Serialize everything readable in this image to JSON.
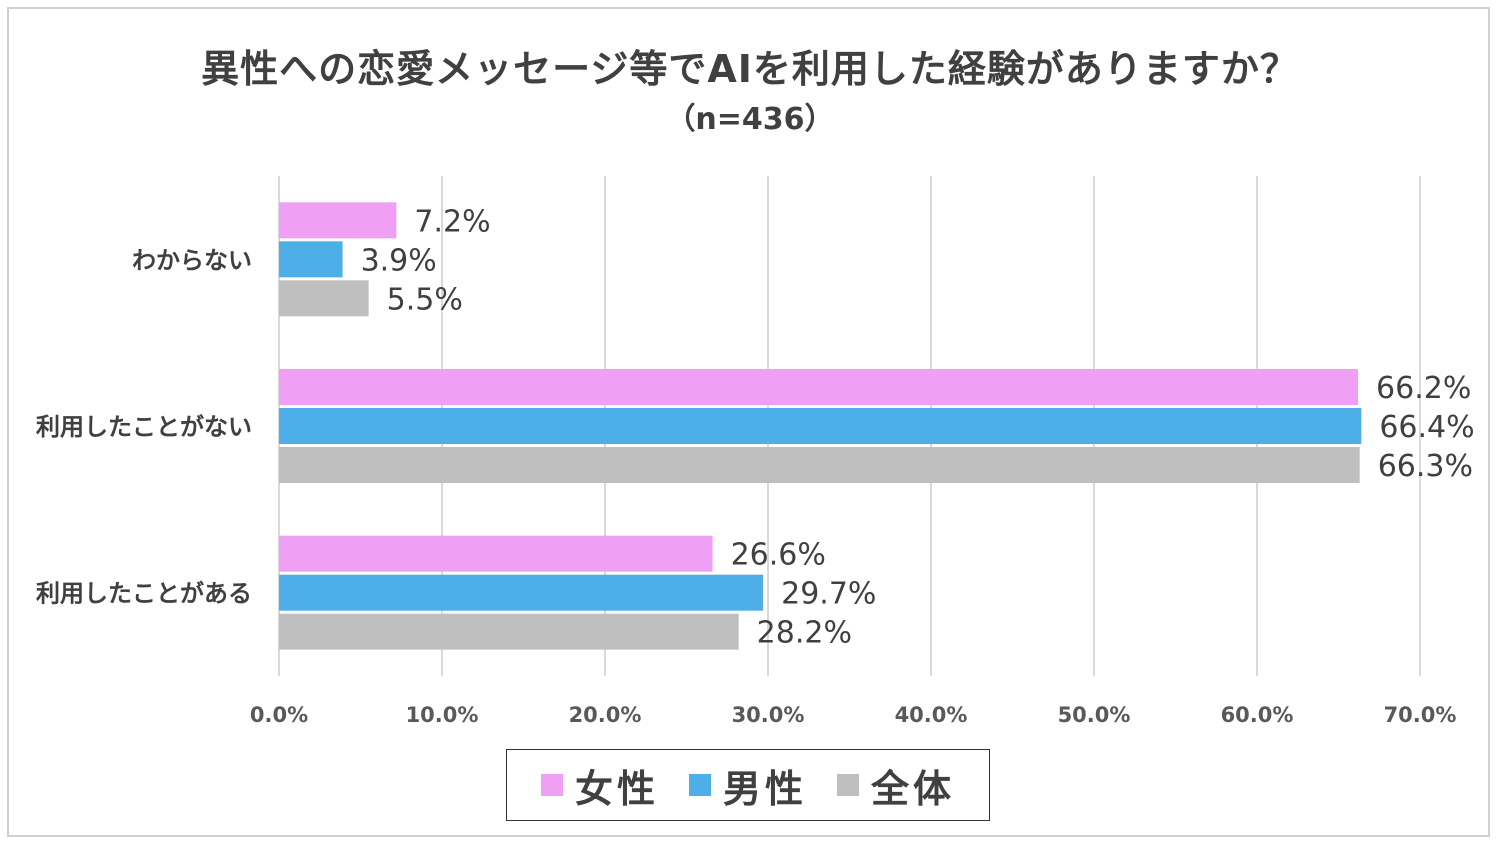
{
  "chart_data": {
    "type": "bar",
    "orientation": "horizontal",
    "title": "異性への恋愛メッセージ等でAIを利用した経験がありますか？",
    "subtitle": "（n=436）",
    "categories": [
      "わからない",
      "利用したことがない",
      "利用したことがある"
    ],
    "series": [
      {
        "name": "女性",
        "color": "#f0a0f4",
        "values": [
          7.2,
          66.2,
          26.6
        ],
        "labels": [
          "7.2%",
          "66.2%",
          "26.6%"
        ]
      },
      {
        "name": "男性",
        "color": "#4eaee8",
        "values": [
          3.9,
          66.4,
          29.7
        ],
        "labels": [
          "3.9%",
          "66.4%",
          "29.7%"
        ]
      },
      {
        "name": "全体",
        "color": "#bfbfbf",
        "values": [
          5.5,
          66.3,
          28.2
        ],
        "labels": [
          "5.5%",
          "66.3%",
          "28.2%"
        ]
      }
    ],
    "xlim": [
      0,
      70
    ],
    "xticks": [
      "0.0%",
      "10.0%",
      "20.0%",
      "30.0%",
      "40.0%",
      "50.0%",
      "60.0%",
      "70.0%"
    ],
    "grid": true,
    "legend_position": "bottom"
  }
}
